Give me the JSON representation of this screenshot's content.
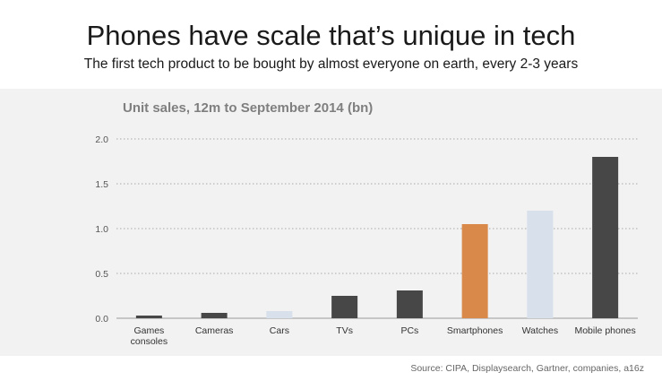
{
  "header": {
    "title": "Phones have scale that’s unique in tech",
    "subtitle": "The first tech product to be bought by almost everyone on earth, every 2-3 years"
  },
  "source": "Source: CIPA, Displaysearch, Gartner, companies, a16z",
  "chart_data": {
    "type": "bar",
    "title": "Unit sales, 12m to September 2014 (bn)",
    "xlabel": "",
    "ylabel": "",
    "categories": [
      [
        "Games",
        "consoles"
      ],
      [
        "Cameras"
      ],
      [
        "Cars"
      ],
      [
        "TVs"
      ],
      [
        "PCs"
      ],
      [
        "Smartphones"
      ],
      [
        "Watches"
      ],
      [
        "Mobile phones"
      ]
    ],
    "values": [
      0.03,
      0.06,
      0.08,
      0.25,
      0.31,
      1.05,
      1.2,
      1.8
    ],
    "colors": [
      "#474747",
      "#474747",
      "#d7e0eb",
      "#474747",
      "#474747",
      "#d98a4b",
      "#d7e0eb",
      "#474747"
    ],
    "ylim": [
      0,
      2.0
    ],
    "yticks": [
      "0.0",
      "0.5",
      "1.0",
      "1.5",
      "2.0"
    ],
    "ytick_values": [
      0,
      0.5,
      1.0,
      1.5,
      2.0
    ],
    "grid": true,
    "legend": false
  }
}
